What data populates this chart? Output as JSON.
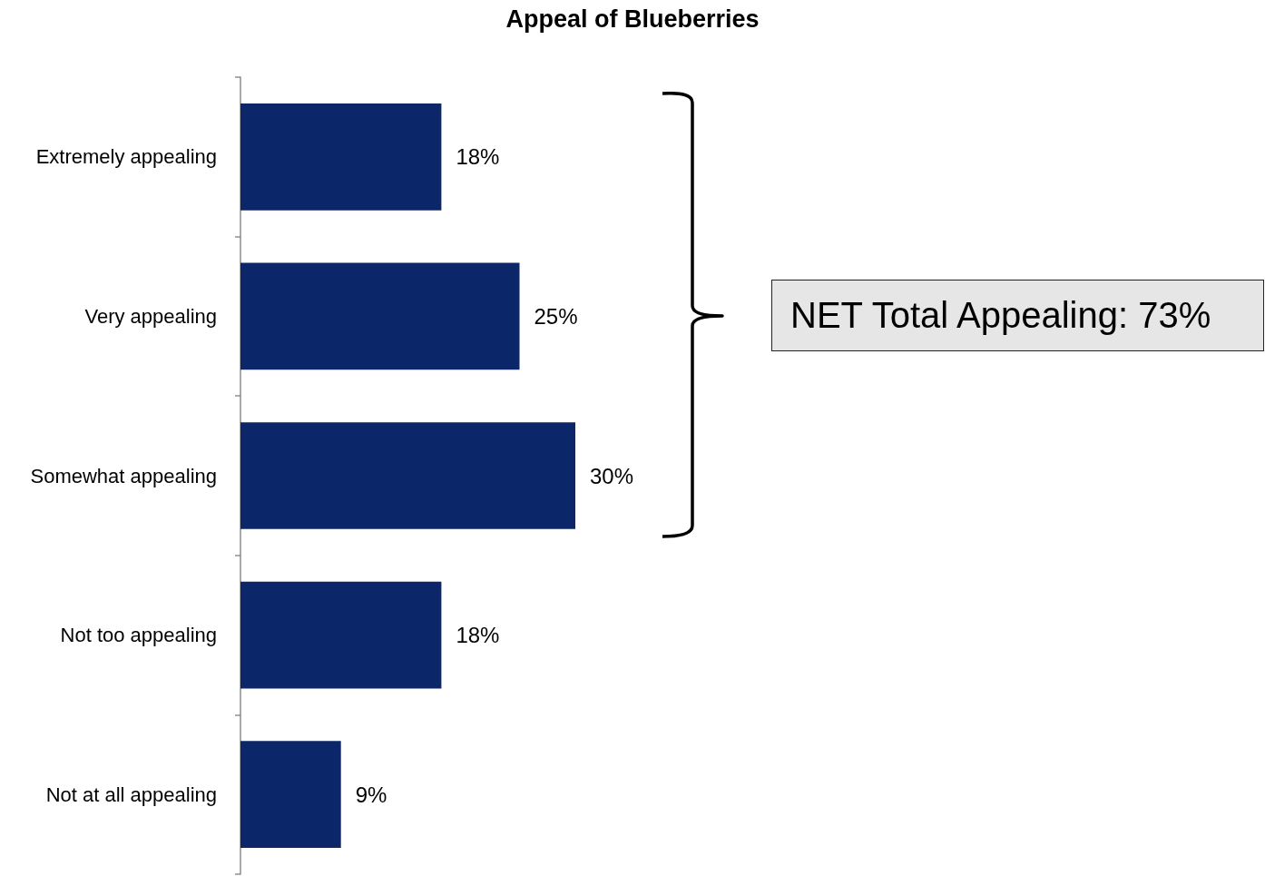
{
  "chart_data": {
    "type": "bar",
    "orientation": "horizontal",
    "title": "Appeal of Blueberries",
    "categories": [
      "Extremely appealing",
      "Very appealing",
      "Somewhat appealing",
      "Not too appealing",
      "Not at all appealing"
    ],
    "values": [
      18,
      25,
      30,
      18,
      9
    ],
    "color": "#0c2769",
    "value_labels": [
      "18%",
      "25%",
      "30%",
      "18%",
      "9%"
    ],
    "annotations": [
      "NET Total Appealing: 73%"
    ],
    "tick_labels": "y"
  }
}
